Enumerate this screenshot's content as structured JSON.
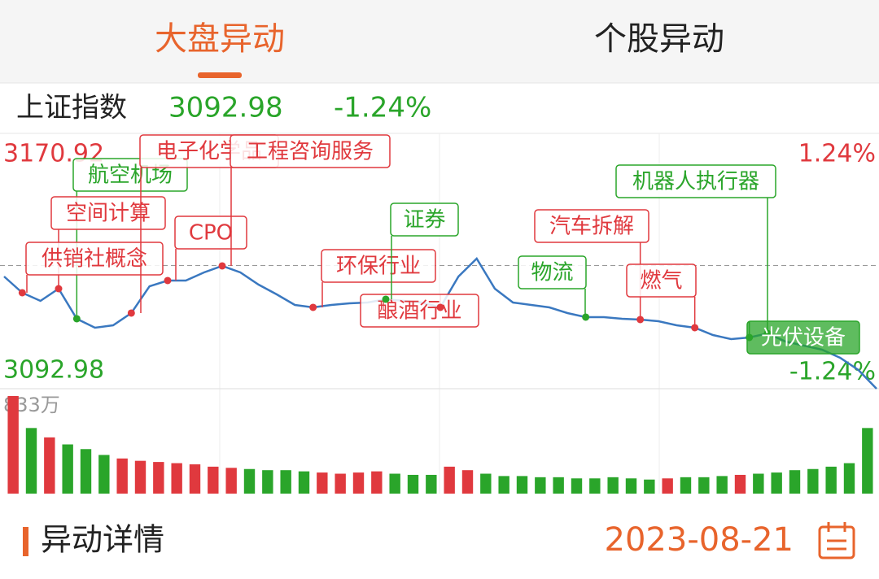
{
  "tabs": [
    "大盘异动",
    "个股异动"
  ],
  "index": {
    "name": "上证指数",
    "price": "3092.98",
    "change": "-1.24%"
  },
  "chart_data": [
    {
      "type": "line",
      "color": "#3a78c0",
      "values": [
        3128.48,
        3123.34,
        3120.77,
        3124.62,
        3115.11,
        3112.28,
        3113.05,
        3116.91,
        3125.4,
        3127.2,
        3127.2,
        3129.77,
        3131.83,
        3129.77,
        3125.91,
        3122.82,
        3119.48,
        3118.71,
        3119.48,
        3119.99,
        3120.25,
        3121.28,
        3120.77,
        3120.25,
        3118.71,
        3128.48,
        3134.14,
        3124.62,
        3120.25,
        3119.48,
        3118.71,
        3116.91,
        3115.62,
        3115.62,
        3115.11,
        3114.85,
        3114.34,
        3113.05,
        3112.28,
        3109.96,
        3108.68,
        3109.19,
        3110.48,
        3107.91,
        3106.62,
        3105.33,
        3102.76,
        3098.9,
        3092.98
      ],
      "ylim": [
        3092.98,
        3170.92
      ],
      "yticks": [
        3170.92,
        3092.98
      ],
      "reference_line": 3131.95,
      "y2lim": [
        -1.24,
        1.24
      ],
      "y2ticks": [
        {
          "value": 1.24,
          "label": "1.24%"
        },
        {
          "value": -1.24,
          "label": "-1.24%"
        }
      ],
      "up_color": "#e0393e",
      "down_color": "#2aa52a",
      "annotations": [
        {
          "text": "航空机场",
          "index": 4,
          "color": "#2aa52a"
        },
        {
          "text": "空间计算",
          "index": 3,
          "color": "#e0393e"
        },
        {
          "text": "供销社概念",
          "index": 1,
          "color": "#e0393e"
        },
        {
          "text": "电子化学品",
          "index": 7,
          "color": "#e0393e"
        },
        {
          "text": "CPO",
          "index": 9,
          "color": "#e0393e"
        },
        {
          "text": "工程咨询服务",
          "index": 12,
          "color": "#e0393e"
        },
        {
          "text": "环保行业",
          "index": 17,
          "color": "#e0393e"
        },
        {
          "text": "酿酒行业",
          "index": 24,
          "color": "#e0393e"
        },
        {
          "text": "证券",
          "index": 21,
          "color": "#2aa52a"
        },
        {
          "text": "物流",
          "index": 32,
          "color": "#2aa52a"
        },
        {
          "text": "汽车拆解",
          "index": 35,
          "color": "#e0393e"
        },
        {
          "text": "燃气",
          "index": 38,
          "color": "#e0393e"
        },
        {
          "text": "机器人执行器",
          "index": 42,
          "color": "#2aa52a"
        },
        {
          "text": "光伏设备",
          "index": 41,
          "color": "#2aa52a",
          "highlight": true
        }
      ]
    },
    {
      "type": "bar",
      "values": [
        833,
        560,
        480,
        420,
        380,
        330,
        300,
        280,
        270,
        260,
        250,
        230,
        220,
        210,
        200,
        200,
        190,
        180,
        170,
        180,
        190,
        170,
        160,
        160,
        230,
        200,
        170,
        150,
        150,
        140,
        140,
        130,
        130,
        140,
        130,
        120,
        130,
        140,
        140,
        150,
        160,
        170,
        180,
        200,
        210,
        230,
        260,
        560
      ],
      "colors": [
        "#e0393e",
        "#2aa52a",
        "#e0393e",
        "#2aa52a",
        "#2aa52a",
        "#2aa52a",
        "#e0393e",
        "#e0393e",
        "#e0393e",
        "#e0393e",
        "#e0393e",
        "#e0393e",
        "#e0393e",
        "#2aa52a",
        "#2aa52a",
        "#2aa52a",
        "#2aa52a",
        "#e0393e",
        "#e0393e",
        "#e0393e",
        "#e0393e",
        "#2aa52a",
        "#2aa52a",
        "#2aa52a",
        "#e0393e",
        "#e0393e",
        "#2aa52a",
        "#2aa52a",
        "#2aa52a",
        "#2aa52a",
        "#2aa52a",
        "#2aa52a",
        "#2aa52a",
        "#2aa52a",
        "#2aa52a",
        "#2aa52a",
        "#e0393e",
        "#2aa52a",
        "#2aa52a",
        "#2aa52a",
        "#e0393e",
        "#2aa52a",
        "#2aa52a",
        "#2aa52a",
        "#2aa52a",
        "#2aa52a",
        "#2aa52a",
        "#2aa52a"
      ],
      "ylim": [
        0,
        833
      ],
      "yticks": [
        {
          "value": 833,
          "label": "833万"
        }
      ]
    }
  ],
  "footer": {
    "title": "异动详情",
    "date": "2023-08-21"
  }
}
